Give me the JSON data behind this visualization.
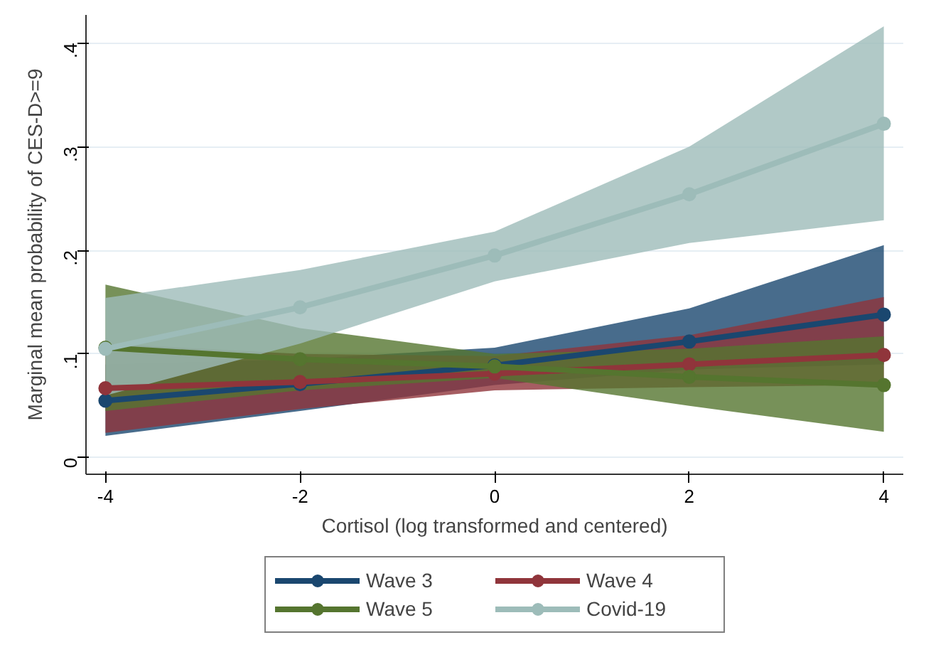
{
  "chart_data": {
    "type": "line",
    "xlabel": "Cortisol (log transformed and centered)",
    "ylabel": "Marginal mean probability of CES-D>=9",
    "x": [
      -4,
      -2,
      0,
      2,
      4
    ],
    "xlim": [
      -4.2,
      4.2
    ],
    "xticks": [
      -4,
      -2,
      0,
      2,
      4
    ],
    "ylim": [
      -0.016,
      0.427
    ],
    "yticks": [
      0,
      {
        "value": 0.1,
        "label": ".1"
      },
      {
        "value": 0.2,
        "label": ".2"
      },
      {
        "value": 0.3,
        "label": ".3"
      },
      {
        "value": 0.4,
        "label": ".4"
      }
    ],
    "grid": "y",
    "legend": "bottom",
    "marker": "circle",
    "line_style": "solid",
    "series": [
      {
        "name": "Wave 3",
        "color": "#1a476f",
        "values": [
          0.055,
          0.071,
          0.089,
          0.112,
          0.138
        ],
        "lower": [
          0.021,
          0.045,
          0.07,
          0.085,
          0.09
        ],
        "upper": [
          0.09,
          0.095,
          0.106,
          0.144,
          0.205
        ]
      },
      {
        "name": "Wave 4",
        "color": "#90353b",
        "values": [
          0.067,
          0.073,
          0.081,
          0.09,
          0.099
        ],
        "lower": [
          0.024,
          0.047,
          0.065,
          0.068,
          0.07
        ],
        "upper": [
          0.11,
          0.1,
          0.098,
          0.118,
          0.155
        ]
      },
      {
        "name": "Wave 5",
        "color": "#55752f",
        "values": [
          0.106,
          0.095,
          0.088,
          0.078,
          0.07
        ],
        "lower": [
          0.045,
          0.065,
          0.077,
          0.05,
          0.025
        ],
        "upper": [
          0.167,
          0.125,
          0.1,
          0.105,
          0.117
        ]
      },
      {
        "name": "Covid-19",
        "color": "#9dbcb9",
        "values": [
          0.105,
          0.145,
          0.195,
          0.254,
          0.322
        ],
        "lower": [
          0.06,
          0.11,
          0.17,
          0.207,
          0.229
        ],
        "upper": [
          0.154,
          0.181,
          0.218,
          0.3,
          0.416
        ]
      }
    ]
  }
}
